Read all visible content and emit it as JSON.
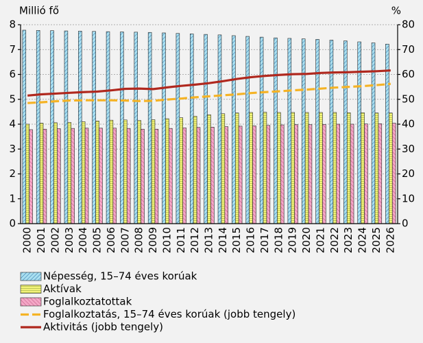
{
  "chart_data": {
    "type": "bar_line",
    "ylabel": "Millió fő",
    "y2label": "%",
    "categories": [
      "2000",
      "2001",
      "2002",
      "2003",
      "2004",
      "2005",
      "2006",
      "2007",
      "2008",
      "2009",
      "2010",
      "2011",
      "2012",
      "2013",
      "2014",
      "2015",
      "2016",
      "2017",
      "2018",
      "2019",
      "2020",
      "2021",
      "2022",
      "2023",
      "2024",
      "2025",
      "2026"
    ],
    "ylim": [
      0,
      8
    ],
    "yticks": [
      0,
      1,
      2,
      3,
      4,
      5,
      6,
      7,
      8
    ],
    "y2lim": [
      0,
      80
    ],
    "y2ticks": [
      0,
      10,
      20,
      30,
      40,
      50,
      60,
      70,
      80
    ],
    "grid": true,
    "legend": "bottom",
    "series": [
      {
        "name": "Népesség, 15–74 éves korúak",
        "kind": "bar",
        "color": "#a9dff0",
        "values": [
          7.78,
          7.77,
          7.76,
          7.75,
          7.74,
          7.73,
          7.72,
          7.71,
          7.7,
          7.69,
          7.67,
          7.65,
          7.63,
          7.61,
          7.59,
          7.56,
          7.53,
          7.5,
          7.47,
          7.45,
          7.43,
          7.41,
          7.38,
          7.35,
          7.31,
          7.27,
          7.22
        ]
      },
      {
        "name": "Aktívak",
        "kind": "bar",
        "color": "#f3f27a",
        "values": [
          4.0,
          4.04,
          4.06,
          4.07,
          4.1,
          4.13,
          4.16,
          4.17,
          4.15,
          4.18,
          4.22,
          4.26,
          4.32,
          4.38,
          4.42,
          4.45,
          4.47,
          4.48,
          4.47,
          4.47,
          4.47,
          4.47,
          4.47,
          4.46,
          4.46,
          4.45,
          4.45
        ]
      },
      {
        "name": "Foglalkoztatottak",
        "kind": "bar",
        "color": "#f4a7c6",
        "values": [
          3.78,
          3.8,
          3.82,
          3.83,
          3.84,
          3.84,
          3.84,
          3.83,
          3.8,
          3.8,
          3.83,
          3.85,
          3.87,
          3.88,
          3.9,
          3.92,
          3.93,
          3.95,
          3.97,
          3.98,
          3.98,
          3.99,
          4.0,
          4.0,
          4.01,
          4.02,
          4.04
        ]
      },
      {
        "name": "Foglalkoztatás, 15–74 éves korúak (jobb tengely)",
        "kind": "line",
        "axis": "y2",
        "dashed": true,
        "color": "#f5b325",
        "values": [
          48.5,
          48.8,
          49.2,
          49.5,
          49.6,
          49.6,
          49.6,
          49.5,
          49.3,
          49.4,
          49.9,
          50.3,
          50.8,
          51.2,
          51.6,
          52.0,
          52.5,
          52.9,
          53.2,
          53.6,
          53.9,
          54.3,
          54.7,
          55.0,
          55.3,
          55.7,
          56.2
        ]
      },
      {
        "name": "Aktivitás (jobb tengely)",
        "kind": "line",
        "axis": "y2",
        "dashed": false,
        "color": "#b0281e",
        "values": [
          51.5,
          52.0,
          52.3,
          52.6,
          52.9,
          53.1,
          53.6,
          54.2,
          54.3,
          54.1,
          54.8,
          55.4,
          55.9,
          56.5,
          57.3,
          58.2,
          58.9,
          59.4,
          59.8,
          60.1,
          60.2,
          60.6,
          60.8,
          60.9,
          61.1,
          61.3,
          61.6
        ]
      }
    ]
  }
}
